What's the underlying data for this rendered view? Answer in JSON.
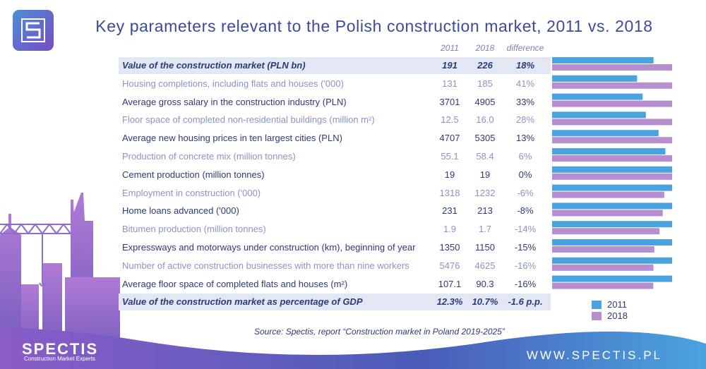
{
  "title": "Key parameters relevant to the Polish construction market, 2011 vs. 2018",
  "headers": {
    "y2011": "2011",
    "y2018": "2018",
    "difference": "difference"
  },
  "source": "Source: Spectis, report “Construction market in Poland 2019-2025”",
  "brand": {
    "name": "SPECTIS",
    "tagline": "Construction Market Experts",
    "website": "WWW.SPECTIS.PL"
  },
  "colors": {
    "bar2011": "#4aa3df",
    "bar2018": "#b78fd0",
    "title": "#3a4a9c",
    "highlight": "#e3e7f3",
    "footer": "#6b58b8"
  },
  "legend": [
    {
      "label": "2011"
    },
    {
      "label": "2018"
    }
  ],
  "rows": [
    {
      "label": "Value of the construction market (PLN bn)",
      "v2011": "191",
      "v2018": "226",
      "diff": "18%"
    },
    {
      "label": "Housing completions, including flats and houses ('000)",
      "v2011": "131",
      "v2018": "185",
      "diff": "41%"
    },
    {
      "label": "Average gross salary in the construction industry (PLN)",
      "v2011": "3701",
      "v2018": "4905",
      "diff": "33%"
    },
    {
      "label": "Floor space of completed non-residential buildings (million m²)",
      "v2011": "12.5",
      "v2018": "16.0",
      "diff": "28%"
    },
    {
      "label": "Average new housing prices in ten largest cities (PLN)",
      "v2011": "4707",
      "v2018": "5305",
      "diff": "13%"
    },
    {
      "label": "Production of concrete mix (million tonnes)",
      "v2011": "55.1",
      "v2018": "58.4",
      "diff": "6%"
    },
    {
      "label": "Cement production (million tonnes)",
      "v2011": "19",
      "v2018": "19",
      "diff": "0%"
    },
    {
      "label": "Employment in construction ('000)",
      "v2011": "1318",
      "v2018": "1232",
      "diff": "-6%"
    },
    {
      "label": "Home loans advanced ('000)",
      "v2011": "231",
      "v2018": "213",
      "diff": "-8%"
    },
    {
      "label": "Bitumen production (million tonnes)",
      "v2011": "1.9",
      "v2018": "1.7",
      "diff": "-14%"
    },
    {
      "label": "Expressways and motorways under construction (km), beginning of year",
      "v2011": "1350",
      "v2018": "1150",
      "diff": "-15%"
    },
    {
      "label": "Number of active construction businesses with more than nine workers",
      "v2011": "5476",
      "v2018": "4625",
      "diff": "-16%"
    },
    {
      "label": "Average floor space of completed flats and houses (m²)",
      "v2011": "107.1",
      "v2018": "90.3",
      "diff": "-16%"
    },
    {
      "label": "Value of the construction market as percentage of GDP",
      "v2011": "12.3%",
      "v2018": "10.7%",
      "diff": "-1.6 p.p."
    }
  ],
  "chart_data": {
    "type": "bar",
    "orientation": "horizontal",
    "categories": [
      "Value of the construction market (PLN bn)",
      "Housing completions, including flats and houses ('000)",
      "Average gross salary in the construction industry (PLN)",
      "Floor space of completed non-residential buildings (million m²)",
      "Average new housing prices in ten largest cities (PLN)",
      "Production of concrete mix (million tonnes)",
      "Cement production (million tonnes)",
      "Employment in construction ('000)",
      "Home loans advanced ('000)",
      "Bitumen production (million tonnes)",
      "Expressways and motorways under construction (km), beginning of year",
      "Number of active construction businesses with more than nine workers",
      "Average floor space of completed flats and houses (m²)"
    ],
    "series": [
      {
        "name": "2011",
        "values": [
          191,
          131,
          3701,
          12.5,
          4707,
          55.1,
          19,
          1318,
          231,
          1.9,
          1350,
          5476,
          107.1
        ]
      },
      {
        "name": "2018",
        "values": [
          226,
          185,
          4905,
          16.0,
          5305,
          58.4,
          19,
          1232,
          213,
          1.7,
          1150,
          4625,
          90.3
        ]
      }
    ],
    "scale": "each row normalized to its larger value",
    "legend_position": "bottom-right"
  }
}
